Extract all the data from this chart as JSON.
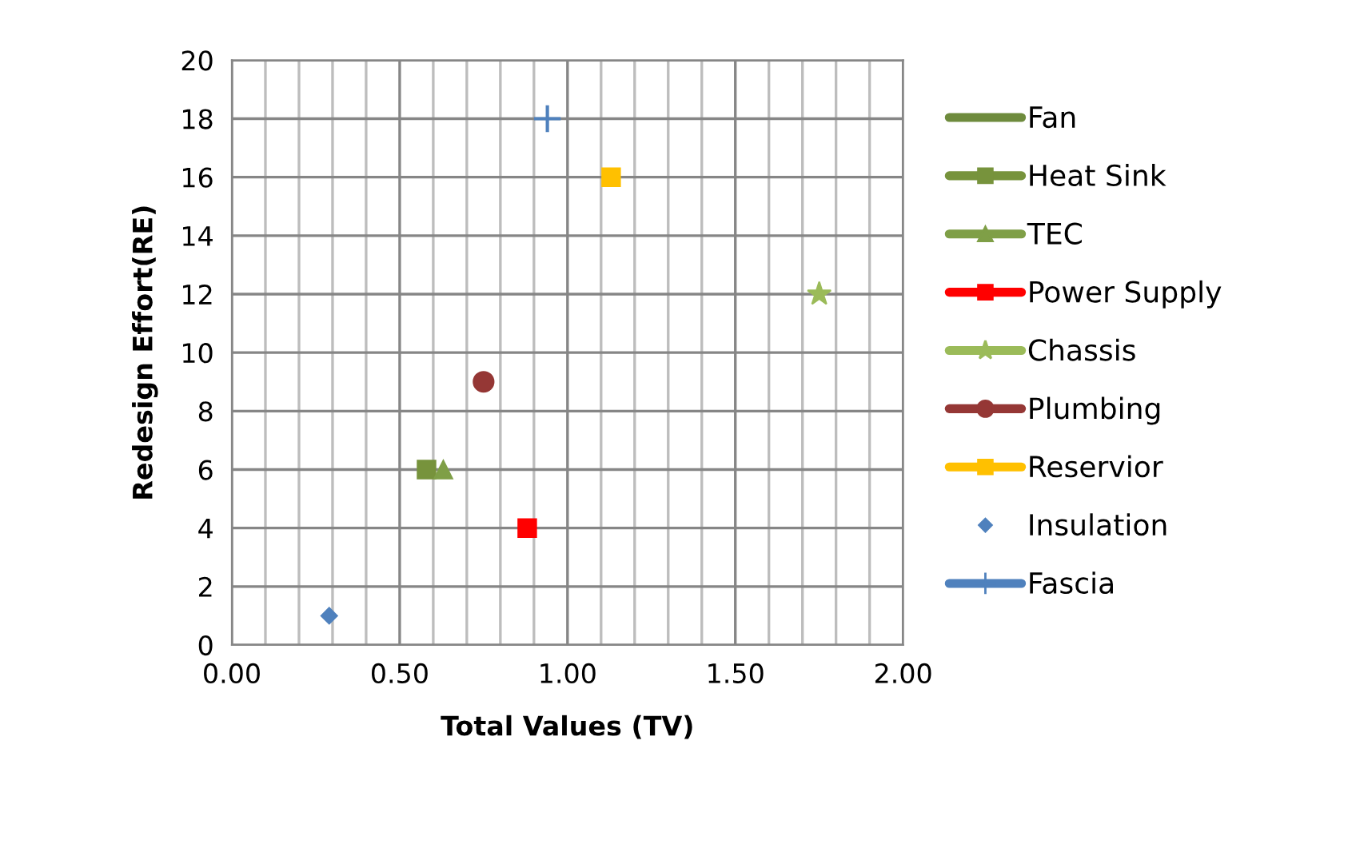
{
  "chart_data": {
    "type": "line",
    "xlabel": "Total Values (TV)",
    "ylabel": "Redesign Effort(RE)",
    "xlim": [
      0,
      2
    ],
    "xticks": [
      {
        "value": 0,
        "label": "0.00"
      },
      {
        "value": 0.5,
        "label": "0.50"
      },
      {
        "value": 1,
        "label": "1.00"
      },
      {
        "value": 1.5,
        "label": "1.50"
      },
      {
        "value": 2,
        "label": "2.00"
      }
    ],
    "ylim": [
      0,
      20
    ],
    "yticks": [
      0,
      2,
      4,
      6,
      8,
      10,
      12,
      14,
      16,
      18,
      20
    ],
    "grid": true,
    "legend": "right",
    "series": [
      {
        "name": "Fan",
        "color": "#6e8b3d",
        "marker": "none",
        "x": [
          null
        ],
        "values": [
          null
        ]
      },
      {
        "name": "Heat Sink",
        "color": "#77933c",
        "marker": "square",
        "x": [
          0.58
        ],
        "values": [
          6
        ]
      },
      {
        "name": "TEC",
        "color": "#7f9f47",
        "marker": "triangle",
        "x": [
          0.63
        ],
        "values": [
          6
        ]
      },
      {
        "name": "Power Supply",
        "color": "#ff0000",
        "marker": "square",
        "x": [
          0.88
        ],
        "values": [
          4
        ]
      },
      {
        "name": "Chassis",
        "color": "#9bbb59",
        "marker": "star",
        "x": [
          1.75
        ],
        "values": [
          12
        ]
      },
      {
        "name": "Plumbing",
        "color": "#953735",
        "marker": "circle",
        "x": [
          0.75
        ],
        "values": [
          9
        ]
      },
      {
        "name": "Reservior",
        "color": "#ffc000",
        "marker": "square",
        "x": [
          1.13
        ],
        "values": [
          16
        ]
      },
      {
        "name": "Insulation",
        "type": "scatter",
        "color": "#4f81bd",
        "marker": "diamond",
        "x": [
          0.29
        ],
        "values": [
          1
        ]
      },
      {
        "name": "Fascia",
        "color": "#4f81bd",
        "marker": "cross",
        "x": [
          0.94
        ],
        "values": [
          18
        ]
      }
    ]
  }
}
